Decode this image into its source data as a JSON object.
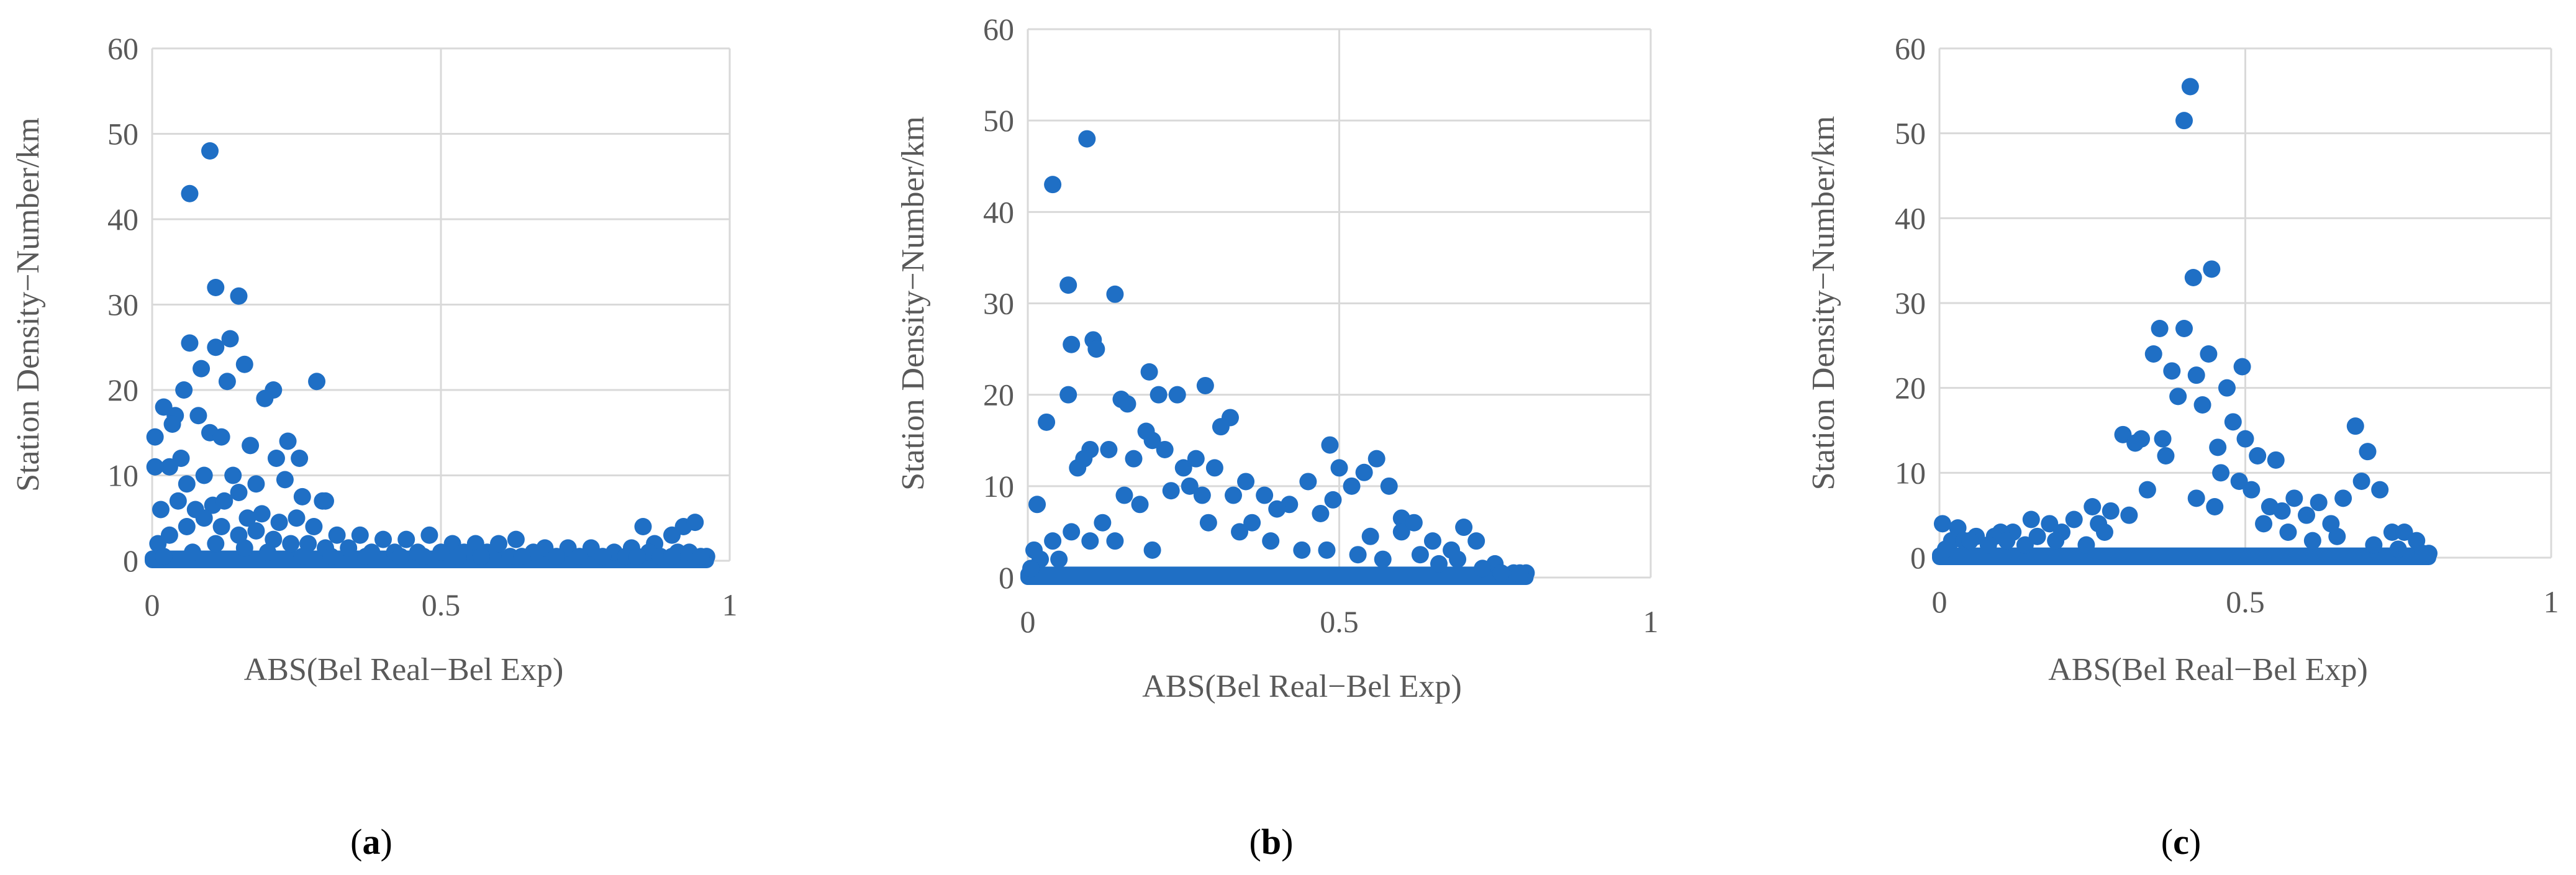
{
  "figure": {
    "marker_color": "#1f6fc5",
    "grid_color": "#d9d9d9",
    "text_color": "#595959"
  },
  "chart_data": [
    {
      "type": "scatter",
      "panel_label": "a",
      "xlabel": "ABS(Bel Real−Bel Exp)",
      "ylabel": "Station Density−Number/km",
      "xlim": [
        0,
        1
      ],
      "ylim": [
        0,
        60
      ],
      "x_ticks": [
        "0",
        "0.5",
        "1"
      ],
      "y_ticks": [
        "0",
        "10",
        "20",
        "30",
        "40",
        "50",
        "60"
      ],
      "grid": true,
      "series": [
        {
          "x": [
            0.1,
            0.065,
            0.11,
            0.15,
            0.065,
            0.135,
            0.11,
            0.085,
            0.16,
            0.13,
            0.285,
            0.21,
            0.195,
            0.055,
            0.005,
            0.02,
            0.04,
            0.035,
            0.08,
            0.1,
            0.12,
            0.17,
            0.235,
            0.255,
            0.215,
            0.295,
            0.3,
            0.03,
            0.005,
            0.05,
            0.09,
            0.14,
            0.06,
            0.15,
            0.18,
            0.23,
            0.26,
            0.015,
            0.045,
            0.075,
            0.105,
            0.125,
            0.165,
            0.19,
            0.22,
            0.25,
            0.28,
            0.32,
            0.36,
            0.4,
            0.44,
            0.48,
            0.52,
            0.56,
            0.6,
            0.63,
            0.68,
            0.72,
            0.76,
            0.8,
            0.83,
            0.85,
            0.87,
            0.9,
            0.92,
            0.94,
            0.96,
            0.01,
            0.03,
            0.06,
            0.09,
            0.12,
            0.15,
            0.18,
            0.21,
            0.24,
            0.27,
            0.3,
            0.34,
            0.38,
            0.42,
            0.46,
            0.5,
            0.54,
            0.58,
            0.62,
            0.66,
            0.7,
            0.74,
            0.78,
            0.82,
            0.86,
            0.88,
            0.91,
            0.93,
            0.95,
            0.02,
            0.07,
            0.11,
            0.16,
            0.2,
            0.26,
            0.31,
            0.37,
            0.43,
            0.47,
            0.53,
            0.57,
            0.64,
            0.84,
            0.9
          ],
          "y": [
            48,
            43,
            32,
            31,
            25.5,
            26,
            25,
            22.5,
            23,
            21,
            21,
            20,
            19,
            20,
            14.5,
            18,
            17,
            16,
            17,
            15,
            14.5,
            13.5,
            14,
            12,
            12,
            7,
            7,
            11,
            11,
            12,
            10,
            10,
            9,
            8,
            9,
            9.5,
            7.5,
            6,
            7,
            6,
            6.5,
            7,
            5,
            5.5,
            4.5,
            5,
            4,
            3,
            3,
            2.5,
            2.5,
            3,
            2,
            2,
            2,
            2.5,
            1.5,
            1.5,
            1.5,
            1,
            1.5,
            4,
            2,
            3,
            4,
            4.5,
            0.5,
            2,
            3,
            4,
            5,
            4,
            3,
            3.5,
            2.5,
            2,
            2,
            1.5,
            1.5,
            1,
            1,
            1,
            1,
            1,
            1,
            0.5,
            1,
            0.5,
            0.5,
            0.5,
            0.5,
            1,
            0.5,
            1,
            1,
            0.5,
            0.5,
            1,
            2,
            1.5,
            1,
            0.5,
            0.5,
            0.5,
            0.5,
            0.5,
            0.5,
            0.5,
            0.5,
            0.5,
            0.5
          ]
        }
      ]
    },
    {
      "type": "scatter",
      "panel_label": "b",
      "xlabel": "ABS(Bel Real−Bel Exp)",
      "ylabel": "Station Density−Number/km",
      "xlim": [
        0,
        1
      ],
      "ylim": [
        0,
        60
      ],
      "x_ticks": [
        "0",
        "0.5",
        "1"
      ],
      "y_ticks": [
        "0",
        "10",
        "20",
        "30",
        "40",
        "50",
        "60"
      ],
      "grid": true,
      "series": [
        {
          "x": [
            0.095,
            0.04,
            0.065,
            0.14,
            0.105,
            0.07,
            0.11,
            0.03,
            0.195,
            0.285,
            0.21,
            0.24,
            0.15,
            0.065,
            0.16,
            0.19,
            0.325,
            0.31,
            0.2,
            0.1,
            0.13,
            0.09,
            0.08,
            0.17,
            0.22,
            0.25,
            0.27,
            0.3,
            0.35,
            0.38,
            0.42,
            0.45,
            0.485,
            0.5,
            0.52,
            0.56,
            0.54,
            0.49,
            0.58,
            0.6,
            0.55,
            0.47,
            0.4,
            0.36,
            0.33,
            0.28,
            0.26,
            0.23,
            0.18,
            0.12,
            0.02,
            0.005,
            0.015,
            0.05,
            0.155,
            0.6,
            0.62,
            0.65,
            0.68,
            0.7,
            0.72,
            0.75,
            0.78,
            0.8,
            0.01,
            0.04,
            0.07,
            0.1,
            0.14,
            0.2,
            0.29,
            0.34,
            0.39,
            0.44,
            0.48,
            0.53,
            0.57,
            0.63,
            0.66,
            0.69,
            0.73,
            0.76,
            0.79
          ],
          "y": [
            48,
            43,
            32,
            31,
            26,
            25.5,
            25,
            17,
            22.5,
            21,
            20,
            20,
            19.5,
            20,
            19,
            16,
            17.5,
            16.5,
            15,
            14,
            14,
            13,
            12,
            13,
            14,
            12,
            13,
            12,
            10.5,
            9,
            8,
            10.5,
            14.5,
            12,
            10,
            13,
            11.5,
            8.5,
            10,
            6.5,
            4.5,
            7,
            7.5,
            6,
            9,
            9,
            10,
            9.5,
            8,
            6,
            2,
            1,
            8,
            2,
            9,
            5,
            6,
            4,
            3,
            5.5,
            4,
            1.5,
            0.5,
            0.5,
            3,
            4,
            5,
            4,
            4,
            3,
            6,
            5,
            4,
            3,
            3,
            2.5,
            2,
            2.5,
            1.5,
            2,
            1,
            0.5,
            0.5
          ]
        }
      ]
    },
    {
      "type": "scatter",
      "panel_label": "c",
      "xlabel": "ABS(Bel Real−Bel Exp)",
      "ylabel": "Station Density−Number/km",
      "xlim": [
        0,
        1
      ],
      "ylim": [
        0,
        60
      ],
      "x_ticks": [
        "0",
        "0.5",
        "1"
      ],
      "y_ticks": [
        "0",
        "10",
        "20",
        "30",
        "40",
        "50",
        "60"
      ],
      "grid": true,
      "series": [
        {
          "x": [
            0.41,
            0.4,
            0.445,
            0.415,
            0.36,
            0.4,
            0.44,
            0.495,
            0.38,
            0.42,
            0.47,
            0.35,
            0.39,
            0.43,
            0.48,
            0.5,
            0.365,
            0.455,
            0.33,
            0.52,
            0.55,
            0.3,
            0.32,
            0.37,
            0.46,
            0.49,
            0.51,
            0.68,
            0.7,
            0.72,
            0.69,
            0.74,
            0.66,
            0.62,
            0.58,
            0.56,
            0.54,
            0.28,
            0.25,
            0.22,
            0.18,
            0.15,
            0.12,
            0.09,
            0.06,
            0.03,
            0.005,
            0.02,
            0.04,
            0.1,
            0.16,
            0.2,
            0.26,
            0.6,
            0.64,
            0.76,
            0.78,
            0.8,
            0.01,
            0.05,
            0.08,
            0.11,
            0.14,
            0.19,
            0.24,
            0.27,
            0.31,
            0.34,
            0.42,
            0.45,
            0.53,
            0.57,
            0.61,
            0.65,
            0.71,
            0.75,
            0.79
          ],
          "y": [
            55.5,
            51.5,
            34,
            33,
            27,
            27,
            24,
            22.5,
            22,
            21.5,
            20,
            24,
            19,
            18,
            16,
            14,
            14,
            13,
            14,
            12,
            11.5,
            14.5,
            13.5,
            12,
            10,
            9,
            8,
            15.5,
            12.5,
            8,
            9,
            3,
            7,
            6.5,
            7,
            5.5,
            6,
            5.5,
            6,
            4.5,
            4,
            4.5,
            3,
            2.5,
            2.5,
            3.5,
            4,
            2,
            2,
            3,
            2.5,
            3,
            4,
            5,
            4,
            3,
            2,
            0.5,
            1,
            2,
            1.5,
            2,
            1.5,
            2,
            1.5,
            3,
            5,
            8,
            7,
            6,
            4,
            3,
            2,
            2.5,
            1.5,
            1,
            0.5
          ]
        }
      ]
    }
  ]
}
